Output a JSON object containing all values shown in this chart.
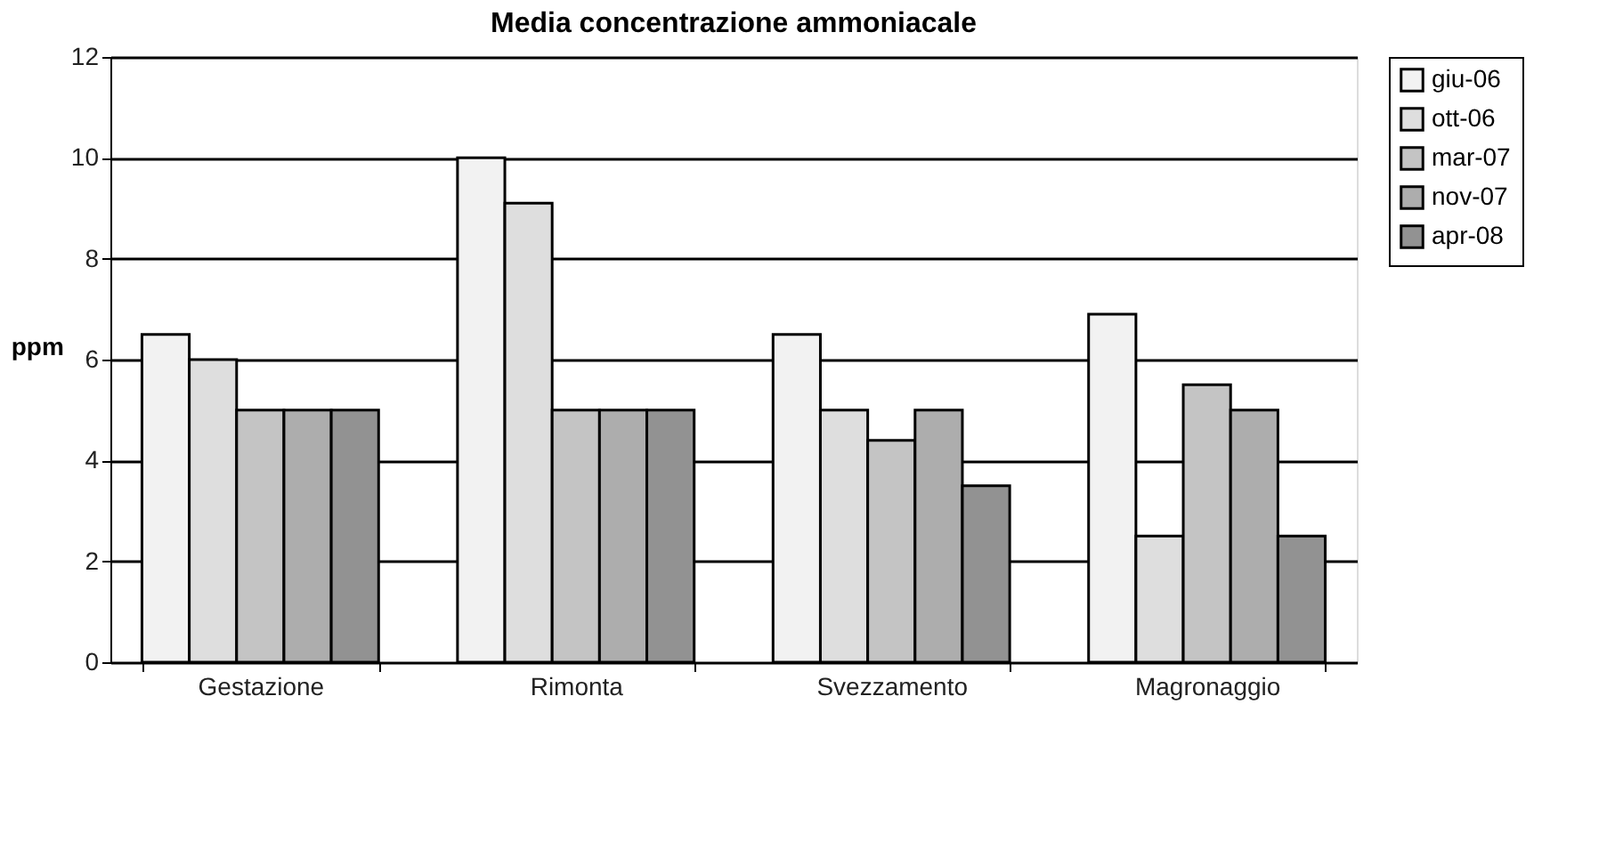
{
  "chart_data": {
    "type": "bar",
    "title": "Media concentrazione ammoniacale",
    "ylabel": "ppm",
    "categories": [
      "Gestazione",
      "Rimonta",
      "Svezzamento",
      "Magronaggio"
    ],
    "series": [
      {
        "name": "giu-06",
        "color": "#f2f2f2",
        "values": [
          6.5,
          10,
          6.5,
          6.9
        ]
      },
      {
        "name": "ott-06",
        "color": "#dedede",
        "values": [
          6,
          9.1,
          5,
          2.5
        ]
      },
      {
        "name": "mar-07",
        "color": "#c4c4c4",
        "values": [
          5,
          5,
          4.4,
          5.5
        ]
      },
      {
        "name": "nov-07",
        "color": "#adadad",
        "values": [
          5,
          5,
          5,
          5
        ]
      },
      {
        "name": "apr-08",
        "color": "#929292",
        "values": [
          5,
          5,
          3.5,
          2.5
        ]
      }
    ],
    "ylim": [
      0,
      12
    ],
    "yticks": [
      0,
      2,
      4,
      6,
      8,
      10,
      12
    ],
    "grid": "y",
    "legend": "right"
  }
}
